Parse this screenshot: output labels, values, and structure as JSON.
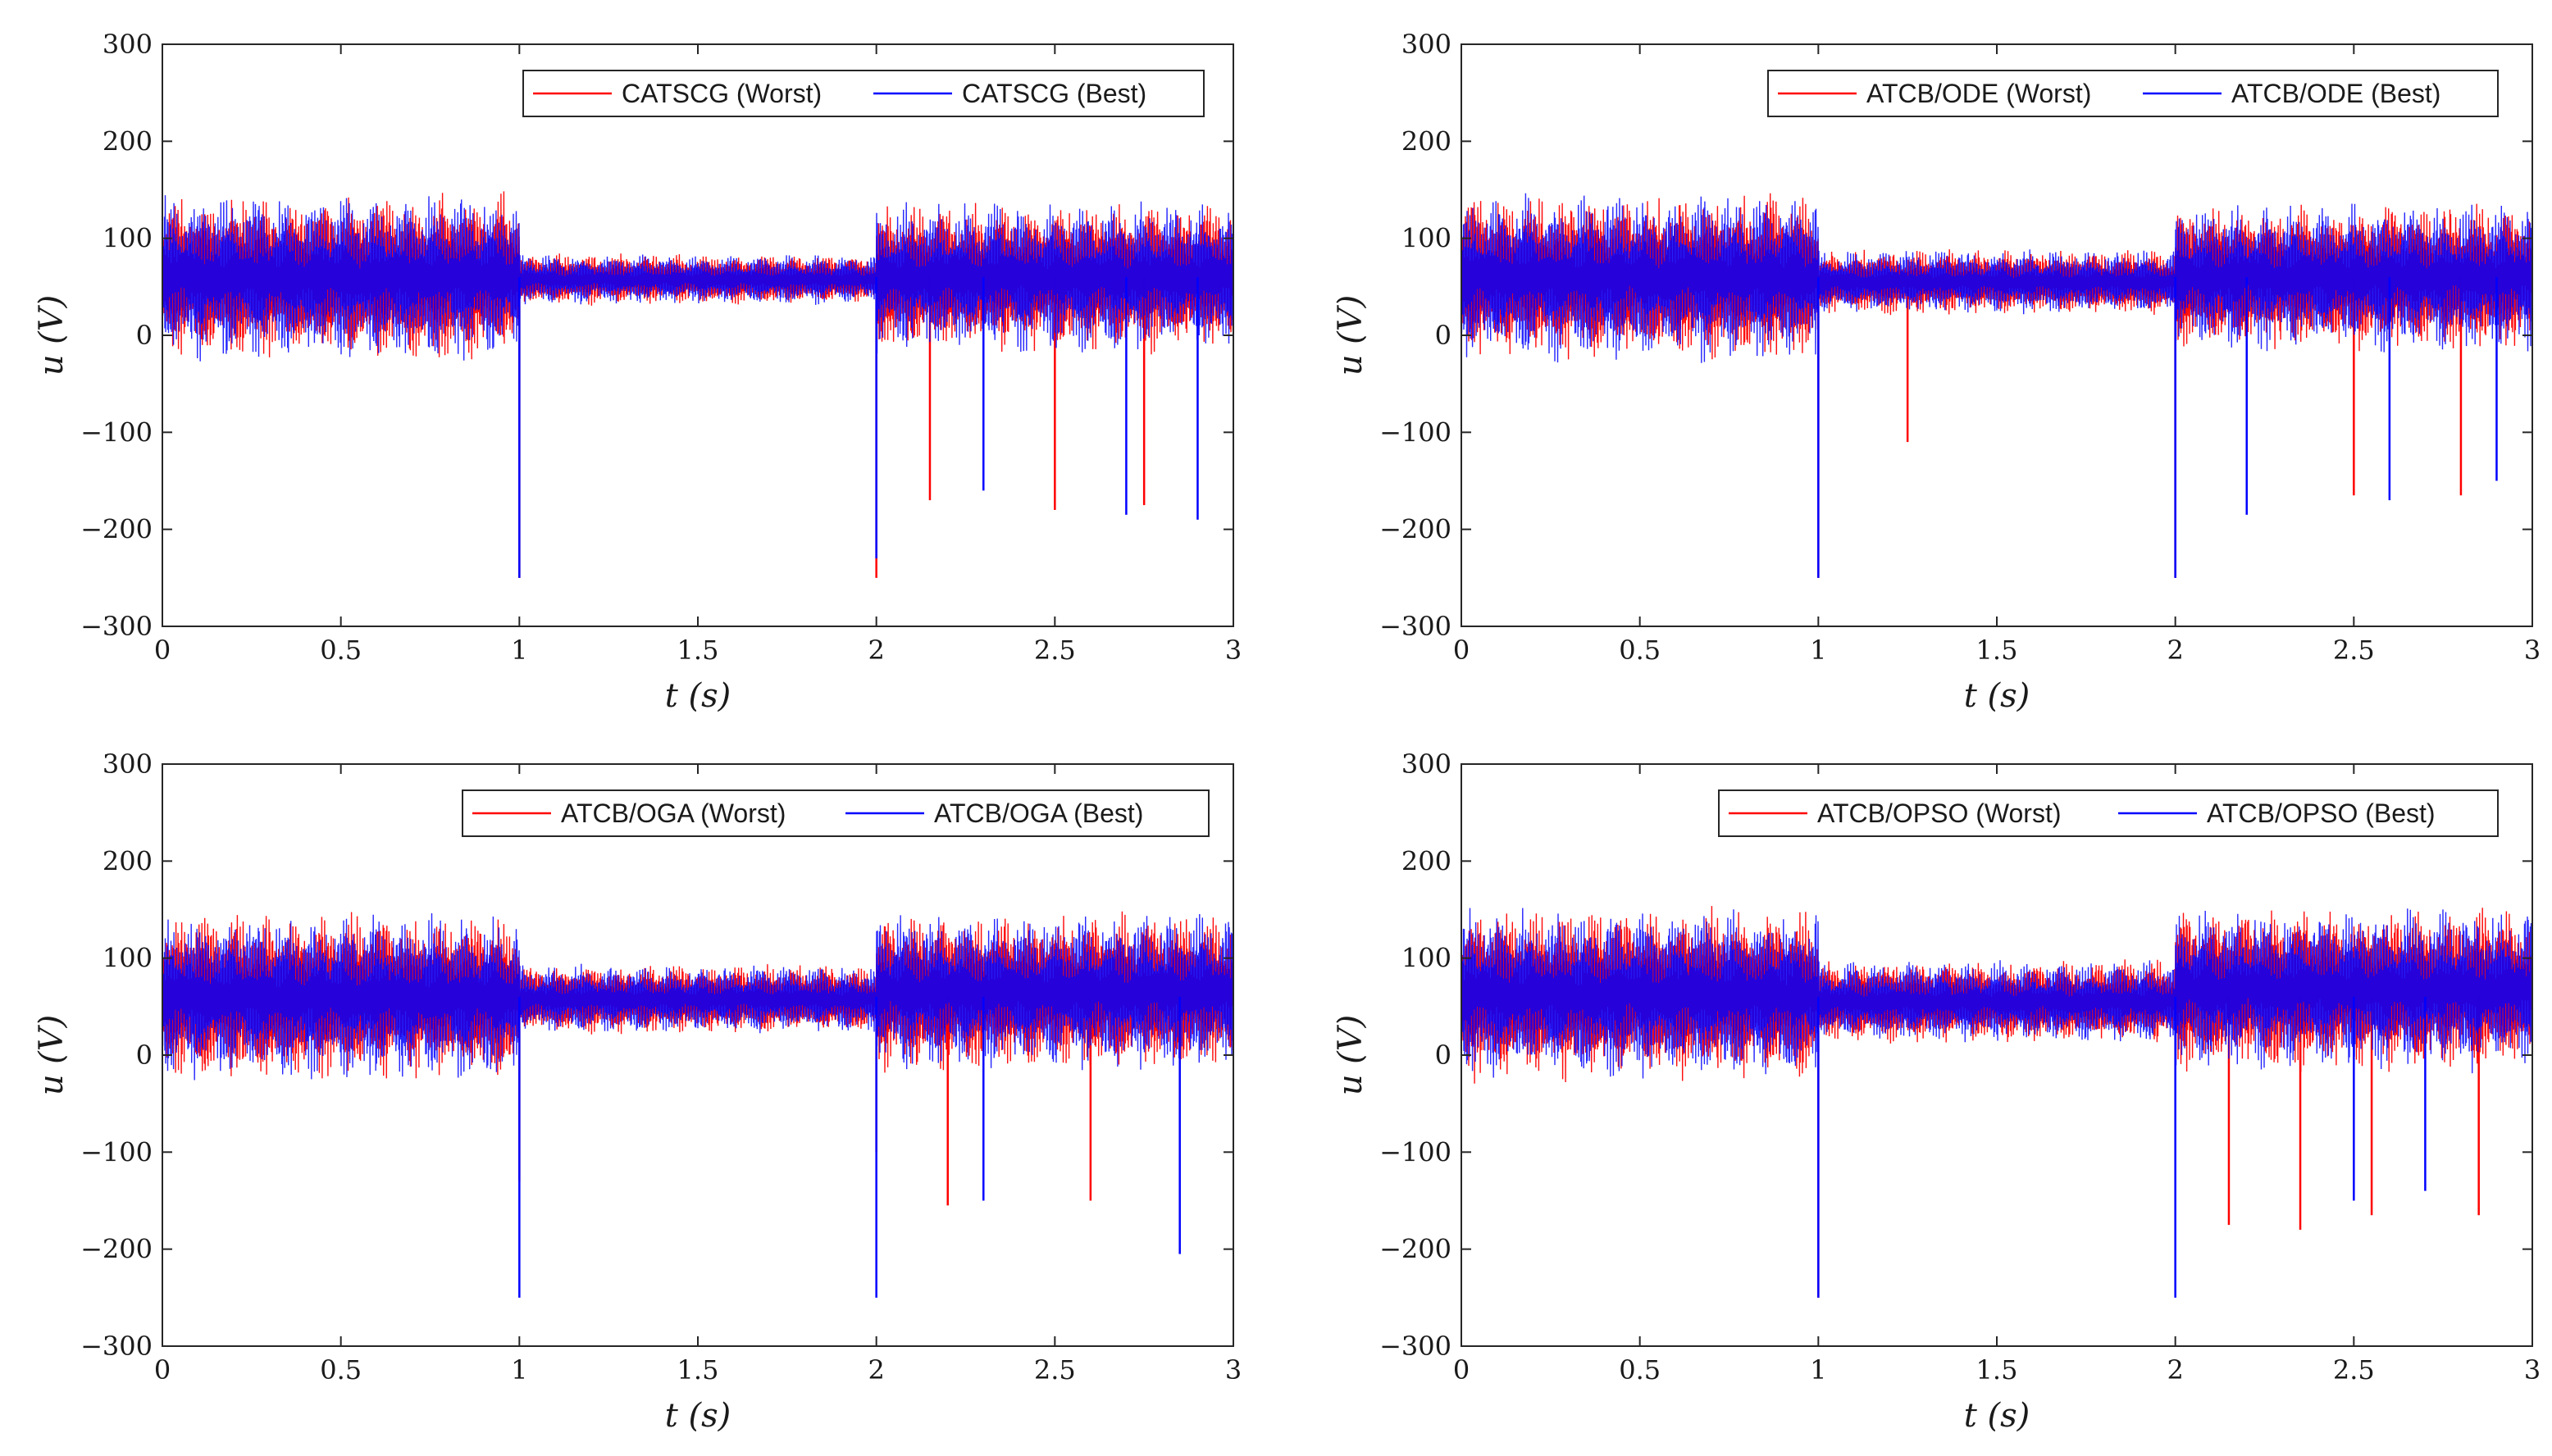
{
  "figure": {
    "colors": {
      "worst": "#ff0000",
      "best": "#0000ff",
      "axes": "#262626"
    }
  },
  "chart_data": [
    {
      "type": "line",
      "xlabel": "t (s)",
      "ylabel": "u (V)",
      "xlim": [
        0,
        3
      ],
      "ylim": [
        -300,
        300
      ],
      "xticks": [
        "0",
        "0.5",
        "1",
        "1.5",
        "2",
        "2.5",
        "3"
      ],
      "yticks": [
        "300",
        "200",
        "100",
        "0",
        "−100",
        "−200",
        "−300"
      ],
      "legend_position": "top-right",
      "series": [
        {
          "name": "CATSCG (Worst)",
          "color": "#ff0000",
          "segments": [
            {
              "t": [
                0,
                1
              ],
              "lo": -30,
              "hi": 150
            },
            {
              "t": [
                1,
                2
              ],
              "lo": 30,
              "hi": 85
            },
            {
              "t": [
                2,
                3
              ],
              "lo": -20,
              "hi": 140
            }
          ],
          "spikes_t": [
            1.0,
            2.0,
            2.15,
            2.5,
            2.75
          ],
          "spikes_v": [
            -250,
            -250,
            -170,
            -180,
            -175
          ]
        },
        {
          "name": "CATSCG (Best)",
          "color": "#0000ff",
          "segments": [
            {
              "t": [
                0,
                1
              ],
              "lo": -30,
              "hi": 150
            },
            {
              "t": [
                1,
                2
              ],
              "lo": 30,
              "hi": 85
            },
            {
              "t": [
                2,
                3
              ],
              "lo": -20,
              "hi": 140
            }
          ],
          "spikes_t": [
            1.0,
            2.0,
            2.3,
            2.7,
            2.9
          ],
          "spikes_v": [
            -250,
            -230,
            -160,
            -185,
            -190
          ]
        }
      ]
    },
    {
      "type": "line",
      "xlabel": "t (s)",
      "ylabel": "u (V)",
      "xlim": [
        0,
        3
      ],
      "ylim": [
        -300,
        300
      ],
      "xticks": [
        "0",
        "0.5",
        "1",
        "1.5",
        "2",
        "2.5",
        "3"
      ],
      "yticks": [
        "300",
        "200",
        "100",
        "0",
        "−100",
        "−200",
        "−300"
      ],
      "legend_position": "top-right",
      "series": [
        {
          "name": "ATCB/ODE (Worst)",
          "color": "#ff0000",
          "segments": [
            {
              "t": [
                0,
                1
              ],
              "lo": -30,
              "hi": 150
            },
            {
              "t": [
                1,
                2
              ],
              "lo": 20,
              "hi": 90
            },
            {
              "t": [
                2,
                3
              ],
              "lo": -20,
              "hi": 140
            }
          ],
          "spikes_t": [
            1.0,
            1.25,
            2.0,
            2.5,
            2.8
          ],
          "spikes_v": [
            -250,
            -110,
            -250,
            -165,
            -165
          ]
        },
        {
          "name": "ATCB/ODE (Best)",
          "color": "#0000ff",
          "segments": [
            {
              "t": [
                0,
                1
              ],
              "lo": -30,
              "hi": 150
            },
            {
              "t": [
                1,
                2
              ],
              "lo": 20,
              "hi": 90
            },
            {
              "t": [
                2,
                3
              ],
              "lo": -20,
              "hi": 140
            }
          ],
          "spikes_t": [
            1.0,
            2.0,
            2.2,
            2.6,
            2.9
          ],
          "spikes_v": [
            -250,
            -250,
            -185,
            -170,
            -150
          ]
        }
      ]
    },
    {
      "type": "line",
      "xlabel": "t (s)",
      "ylabel": "u (V)",
      "xlim": [
        0,
        3
      ],
      "ylim": [
        -300,
        300
      ],
      "xticks": [
        "0",
        "0.5",
        "1",
        "1.5",
        "2",
        "2.5",
        "3"
      ],
      "yticks": [
        "300",
        "200",
        "100",
        "0",
        "−100",
        "−200",
        "−300"
      ],
      "legend_position": "top-right",
      "series": [
        {
          "name": "ATCB/OGA (Worst)",
          "color": "#ff0000",
          "segments": [
            {
              "t": [
                0,
                1
              ],
              "lo": -30,
              "hi": 150
            },
            {
              "t": [
                1,
                2
              ],
              "lo": 20,
              "hi": 95
            },
            {
              "t": [
                2,
                3
              ],
              "lo": -20,
              "hi": 150
            }
          ],
          "spikes_t": [
            1.0,
            2.0,
            2.2,
            2.6
          ],
          "spikes_v": [
            -130,
            -100,
            -155,
            -150
          ]
        },
        {
          "name": "ATCB/OGA (Best)",
          "color": "#0000ff",
          "segments": [
            {
              "t": [
                0,
                1
              ],
              "lo": -30,
              "hi": 150
            },
            {
              "t": [
                1,
                2
              ],
              "lo": 20,
              "hi": 95
            },
            {
              "t": [
                2,
                3
              ],
              "lo": -20,
              "hi": 150
            }
          ],
          "spikes_t": [
            1.0,
            2.0,
            2.3,
            2.85
          ],
          "spikes_v": [
            -250,
            -250,
            -150,
            -205
          ]
        }
      ]
    },
    {
      "type": "line",
      "xlabel": "t (s)",
      "ylabel": "u (V)",
      "xlim": [
        0,
        3
      ],
      "ylim": [
        -300,
        300
      ],
      "xticks": [
        "0",
        "0.5",
        "1",
        "1.5",
        "2",
        "2.5",
        "3"
      ],
      "yticks": [
        "300",
        "200",
        "100",
        "0",
        "−100",
        "−200",
        "−300"
      ],
      "legend_position": "top-right",
      "series": [
        {
          "name": "ATCB/OPSO (Worst)",
          "color": "#ff0000",
          "segments": [
            {
              "t": [
                0,
                1
              ],
              "lo": -30,
              "hi": 155
            },
            {
              "t": [
                1,
                2
              ],
              "lo": 10,
              "hi": 100
            },
            {
              "t": [
                2,
                3
              ],
              "lo": -20,
              "hi": 155
            }
          ],
          "spikes_t": [
            1.0,
            2.15,
            2.35,
            2.55,
            2.85
          ],
          "spikes_v": [
            -250,
            -175,
            -180,
            -165,
            -165
          ]
        },
        {
          "name": "ATCB/OPSO (Best)",
          "color": "#0000ff",
          "segments": [
            {
              "t": [
                0,
                1
              ],
              "lo": -30,
              "hi": 155
            },
            {
              "t": [
                1,
                2
              ],
              "lo": 10,
              "hi": 100
            },
            {
              "t": [
                2,
                3
              ],
              "lo": -20,
              "hi": 155
            }
          ],
          "spikes_t": [
            1.0,
            2.0,
            2.5,
            2.7
          ],
          "spikes_v": [
            -250,
            -250,
            -150,
            -140
          ]
        }
      ]
    }
  ]
}
